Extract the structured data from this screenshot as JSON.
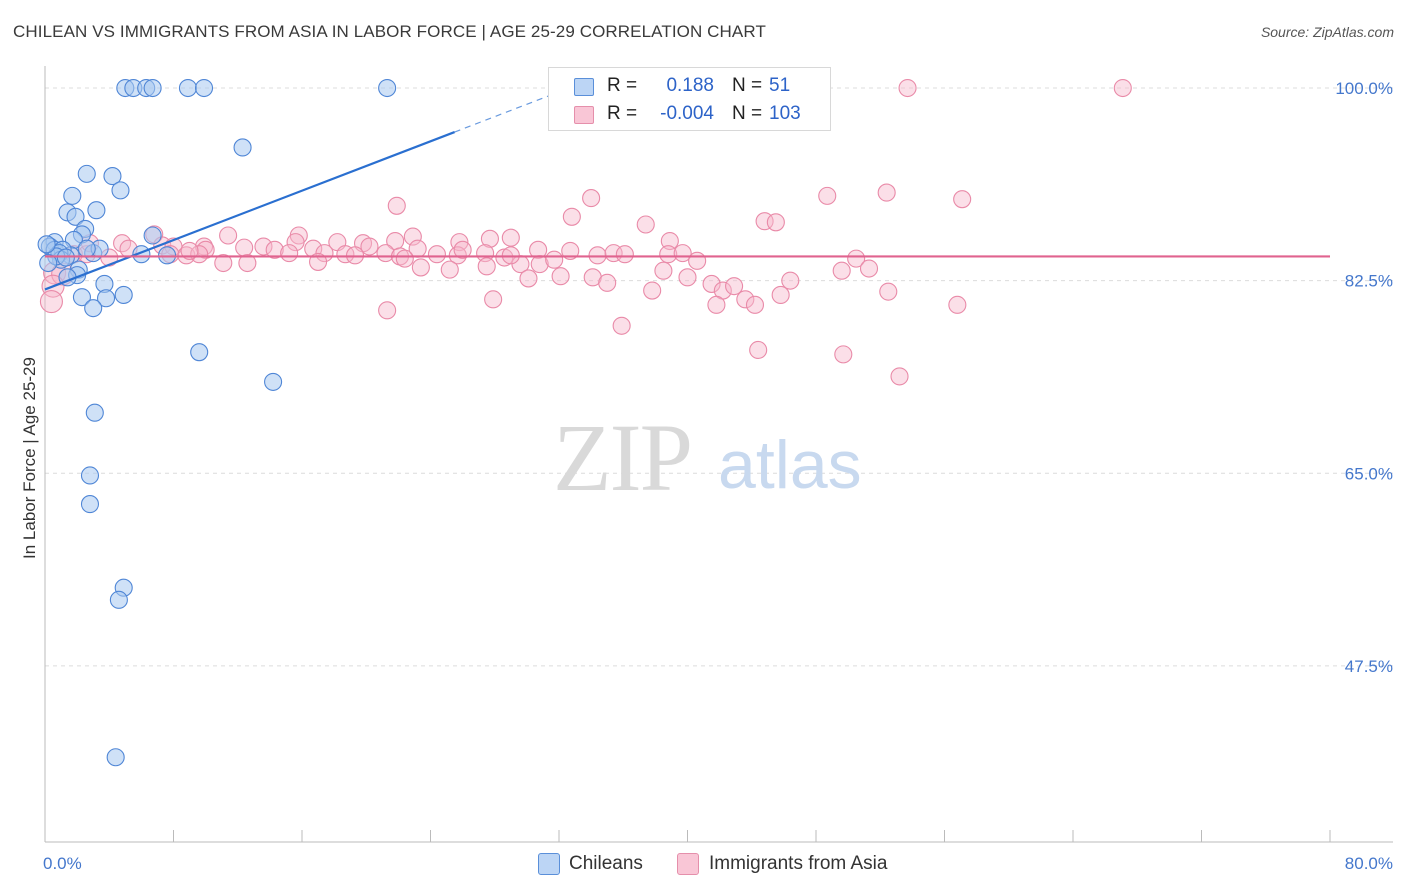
{
  "title": "CHILEAN VS IMMIGRANTS FROM ASIA IN LABOR FORCE | AGE 25-29 CORRELATION CHART",
  "source": "Source: ZipAtlas.com",
  "watermark": {
    "zip": "ZIP",
    "atlas": "atlas"
  },
  "legend": {
    "rows": [
      {
        "r_label": "R =",
        "r_value": "0.188",
        "n_label": "N =",
        "n_value": "51"
      },
      {
        "r_label": "R =",
        "r_value": "-0.004",
        "n_label": "N =",
        "n_value": "103"
      }
    ]
  },
  "bottom_legend": {
    "items": [
      "Chileans",
      "Immigrants from Asia"
    ]
  },
  "colors": {
    "blue_fill": "#a8c8f0",
    "blue_stroke": "#4f86d6",
    "blue_line": "#2a6fd0",
    "pink_fill": "#f7b9cc",
    "pink_stroke": "#e98aa8",
    "pink_line": "#e0638f",
    "tick_text": "#4477cc",
    "grid": "#dcdcdc"
  },
  "chart_data": {
    "type": "scatter",
    "title": "CHILEAN VS IMMIGRANTS FROM ASIA IN LABOR FORCE | AGE 25-29 CORRELATION CHART",
    "xlabel": "",
    "ylabel": "In Labor Force | Age 25-29",
    "xlim": [
      0,
      80
    ],
    "ylim": [
      31.5,
      102
    ],
    "y_ticks": [
      100.0,
      82.5,
      65.0,
      47.5
    ],
    "y_tick_labels": [
      "100.0%",
      "82.5%",
      "65.0%",
      "47.5%"
    ],
    "x_tick_labels": [
      "0.0%",
      "80.0%"
    ],
    "grid": true,
    "legend_position": "top-center",
    "series": [
      {
        "name": "Chileans",
        "r": 0.188,
        "n": 51,
        "trend": {
          "x0": 0.0,
          "y0": 81.7,
          "x1": 25.5,
          "y1": 96.0,
          "dashed_to_x": 31.5
        },
        "points": [
          [
            5.0,
            100
          ],
          [
            5.5,
            100
          ],
          [
            6.3,
            100
          ],
          [
            6.7,
            100
          ],
          [
            8.9,
            100
          ],
          [
            9.9,
            100
          ],
          [
            21.3,
            100
          ],
          [
            12.3,
            94.6
          ],
          [
            2.6,
            92.2
          ],
          [
            4.2,
            92.0
          ],
          [
            4.7,
            90.7
          ],
          [
            1.7,
            90.2
          ],
          [
            1.4,
            88.7
          ],
          [
            3.2,
            88.9
          ],
          [
            1.9,
            88.3
          ],
          [
            2.5,
            87.2
          ],
          [
            2.3,
            86.7
          ],
          [
            1.8,
            86.2
          ],
          [
            1.6,
            84.8
          ],
          [
            0.6,
            86.0
          ],
          [
            0.3,
            85.6
          ],
          [
            0.6,
            85.3
          ],
          [
            1.1,
            85.3
          ],
          [
            0.9,
            85.0
          ],
          [
            1.0,
            84.4
          ],
          [
            0.7,
            84.7
          ],
          [
            0.2,
            84.1
          ],
          [
            3.0,
            85.0
          ],
          [
            3.4,
            85.4
          ],
          [
            1.3,
            84.6
          ],
          [
            2.1,
            83.5
          ],
          [
            2.0,
            83.0
          ],
          [
            2.6,
            85.4
          ],
          [
            6.0,
            84.9
          ],
          [
            7.6,
            84.8
          ],
          [
            1.4,
            82.8
          ],
          [
            2.3,
            81.0
          ],
          [
            4.9,
            81.2
          ],
          [
            3.7,
            82.2
          ],
          [
            3.8,
            80.9
          ],
          [
            3.0,
            80.0
          ],
          [
            6.7,
            86.6
          ],
          [
            9.6,
            76.0
          ],
          [
            14.2,
            73.3
          ],
          [
            3.1,
            70.5
          ],
          [
            2.8,
            64.8
          ],
          [
            2.8,
            62.2
          ],
          [
            4.9,
            54.6
          ],
          [
            4.6,
            53.5
          ],
          [
            4.4,
            39.2
          ],
          [
            0.1,
            85.8
          ]
        ]
      },
      {
        "name": "Immigrants from Asia",
        "r": -0.004,
        "n": 103,
        "trend": {
          "x0": 0.0,
          "y0": 84.7,
          "x1": 80.0,
          "y1": 84.7
        },
        "points": [
          [
            53.7,
            100
          ],
          [
            67.1,
            100
          ],
          [
            21.9,
            89.3
          ],
          [
            34.0,
            90.0
          ],
          [
            48.7,
            90.2
          ],
          [
            52.4,
            90.5
          ],
          [
            57.1,
            89.9
          ],
          [
            32.8,
            88.3
          ],
          [
            37.4,
            87.6
          ],
          [
            44.8,
            87.9
          ],
          [
            45.5,
            87.8
          ],
          [
            22.9,
            86.5
          ],
          [
            27.7,
            86.3
          ],
          [
            29.0,
            86.4
          ],
          [
            6.8,
            86.7
          ],
          [
            11.4,
            86.6
          ],
          [
            15.8,
            86.6
          ],
          [
            15.6,
            86.0
          ],
          [
            18.2,
            86.0
          ],
          [
            19.8,
            85.9
          ],
          [
            20.2,
            85.6
          ],
          [
            21.8,
            86.1
          ],
          [
            25.8,
            86.0
          ],
          [
            30.7,
            85.3
          ],
          [
            38.9,
            86.1
          ],
          [
            4.8,
            85.9
          ],
          [
            5.2,
            85.4
          ],
          [
            7.3,
            85.7
          ],
          [
            8.0,
            85.6
          ],
          [
            9.9,
            85.6
          ],
          [
            10.0,
            85.3
          ],
          [
            12.4,
            85.5
          ],
          [
            13.6,
            85.6
          ],
          [
            14.3,
            85.3
          ],
          [
            15.2,
            85.0
          ],
          [
            16.7,
            85.4
          ],
          [
            17.4,
            85.0
          ],
          [
            18.7,
            84.9
          ],
          [
            19.3,
            84.8
          ],
          [
            21.2,
            85.0
          ],
          [
            22.1,
            84.7
          ],
          [
            23.2,
            85.4
          ],
          [
            24.4,
            84.9
          ],
          [
            25.7,
            84.8
          ],
          [
            26.0,
            85.3
          ],
          [
            27.4,
            85.0
          ],
          [
            28.6,
            84.6
          ],
          [
            29.6,
            84.0
          ],
          [
            30.8,
            84.0
          ],
          [
            31.7,
            84.4
          ],
          [
            32.7,
            85.2
          ],
          [
            34.4,
            84.8
          ],
          [
            35.4,
            85.0
          ],
          [
            36.1,
            84.9
          ],
          [
            38.8,
            84.9
          ],
          [
            39.7,
            85.0
          ],
          [
            40.6,
            84.3
          ],
          [
            1.8,
            84.9
          ],
          [
            2.6,
            84.9
          ],
          [
            4.0,
            84.6
          ],
          [
            7.8,
            84.9
          ],
          [
            8.8,
            84.8
          ],
          [
            9.6,
            84.9
          ],
          [
            11.1,
            84.1
          ],
          [
            12.6,
            84.1
          ],
          [
            17.0,
            84.2
          ],
          [
            22.4,
            84.5
          ],
          [
            23.4,
            83.7
          ],
          [
            25.2,
            83.5
          ],
          [
            27.5,
            83.8
          ],
          [
            30.1,
            82.7
          ],
          [
            32.1,
            82.9
          ],
          [
            34.1,
            82.8
          ],
          [
            35.0,
            82.3
          ],
          [
            37.8,
            81.6
          ],
          [
            38.5,
            83.4
          ],
          [
            40.0,
            82.8
          ],
          [
            41.5,
            82.2
          ],
          [
            42.2,
            81.6
          ],
          [
            42.9,
            82.0
          ],
          [
            43.6,
            80.8
          ],
          [
            45.8,
            81.2
          ],
          [
            46.4,
            82.5
          ],
          [
            49.6,
            83.4
          ],
          [
            50.5,
            84.5
          ],
          [
            51.3,
            83.6
          ],
          [
            52.5,
            81.5
          ],
          [
            41.8,
            80.3
          ],
          [
            44.2,
            80.3
          ],
          [
            56.8,
            80.3
          ],
          [
            21.3,
            79.8
          ],
          [
            27.9,
            80.8
          ],
          [
            35.9,
            78.4
          ],
          [
            44.4,
            76.2
          ],
          [
            49.7,
            75.8
          ],
          [
            53.2,
            73.8
          ],
          [
            0.6,
            83.2
          ],
          [
            1.1,
            83.1
          ],
          [
            0.5,
            82.0
          ],
          [
            0.4,
            80.6
          ],
          [
            9.0,
            85.2
          ],
          [
            2.8,
            85.9
          ],
          [
            29.0,
            84.8
          ]
        ]
      }
    ]
  }
}
